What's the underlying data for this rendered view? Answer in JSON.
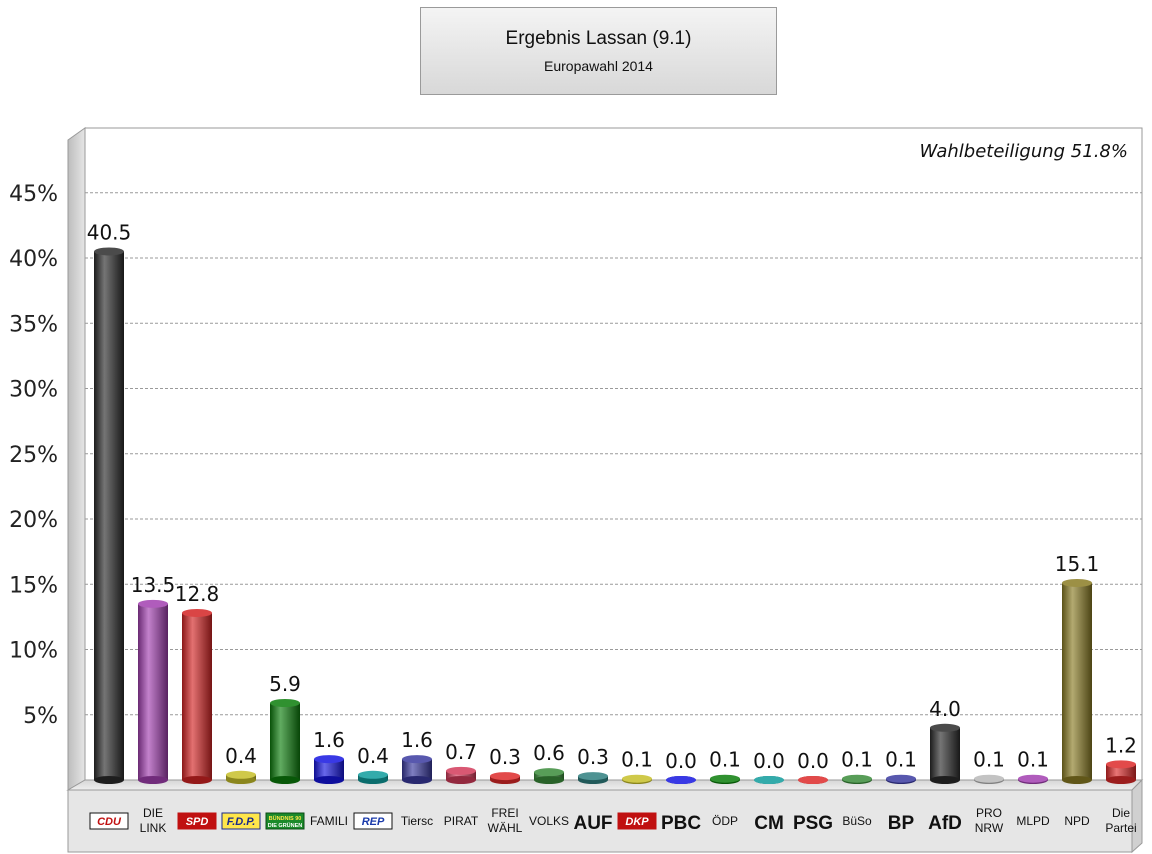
{
  "header": {
    "title": "Ergebnis Lassan (9.1)",
    "subtitle": "Europawahl 2014"
  },
  "chart_data": {
    "type": "bar",
    "annotation": "Wahlbeteiligung 51.8%",
    "ylim": [
      0,
      50
    ],
    "yticks": [
      5,
      10,
      15,
      20,
      25,
      30,
      35,
      40,
      45
    ],
    "ytick_labels": [
      "5%",
      "10%",
      "15%",
      "20%",
      "25%",
      "30%",
      "35%",
      "40%",
      "45%"
    ],
    "grid": true,
    "categories": [
      "CDU",
      "DIE LINK",
      "SPD",
      "F.D.P.",
      "GRÜNE",
      "FAMILI",
      "REP",
      "Tiersc",
      "PIRAT",
      "FREI WÄHL",
      "VOLKS",
      "AUF",
      "DKP",
      "PBC",
      "ÖDP",
      "CM",
      "PSG",
      "BüSo",
      "BP",
      "AfD",
      "PRO NRW",
      "MLPD",
      "NPD",
      "Die Partei"
    ],
    "category_labels": [
      "CDU",
      "DIE\nLINK",
      "SPD",
      "F.D.P.",
      "BÜNDNIS 90 DIE GRÜNEN",
      "FAMILI",
      "REP",
      "Tiersc",
      "PIRAT",
      "FREI\nWÄHL",
      "VOLKS",
      "AUF",
      "DKP",
      "PBC",
      "ÖDP",
      "CM",
      "PSG",
      "BüSo",
      "BP",
      "AfD",
      "PRO\nNRW",
      "MLPD",
      "NPD",
      "Die\nPartei"
    ],
    "values": [
      40.5,
      13.5,
      12.8,
      0.4,
      5.9,
      1.6,
      0.4,
      1.6,
      0.7,
      0.3,
      0.6,
      0.3,
      0.1,
      0.0,
      0.1,
      0.0,
      0.0,
      0.1,
      0.1,
      4.0,
      0.1,
      0.1,
      15.1,
      1.2
    ],
    "value_labels": [
      "40.5",
      "13.5",
      "12.8",
      "0.4",
      "5.9",
      "1.6",
      "0.4",
      "1.6",
      "0.7",
      "0.3",
      "0.6",
      "0.3",
      "0.1",
      "0.0",
      "0.1",
      "0.0",
      "0.0",
      "0.1",
      "0.1",
      "4.0",
      "0.1",
      "0.1",
      "15.1",
      "1.2"
    ],
    "colors": [
      "#2b2b2b",
      "#a23fb0",
      "#d42424",
      "#c7bf2a",
      "#0c7d0c",
      "#1616e0",
      "#0f9c9c",
      "#3a3aa0",
      "#d23a5a",
      "#dd2a2a",
      "#3b8c3b",
      "#2f7f7f",
      "#c7bf2a",
      "#1616e0",
      "#0c7d0c",
      "#0f9c9c",
      "#dd2a2a",
      "#3b8c3b",
      "#3a3aa0",
      "#2b2b2b",
      "#b8b8b8",
      "#a23fb0",
      "#8a7c24",
      "#dd2a2a"
    ]
  }
}
